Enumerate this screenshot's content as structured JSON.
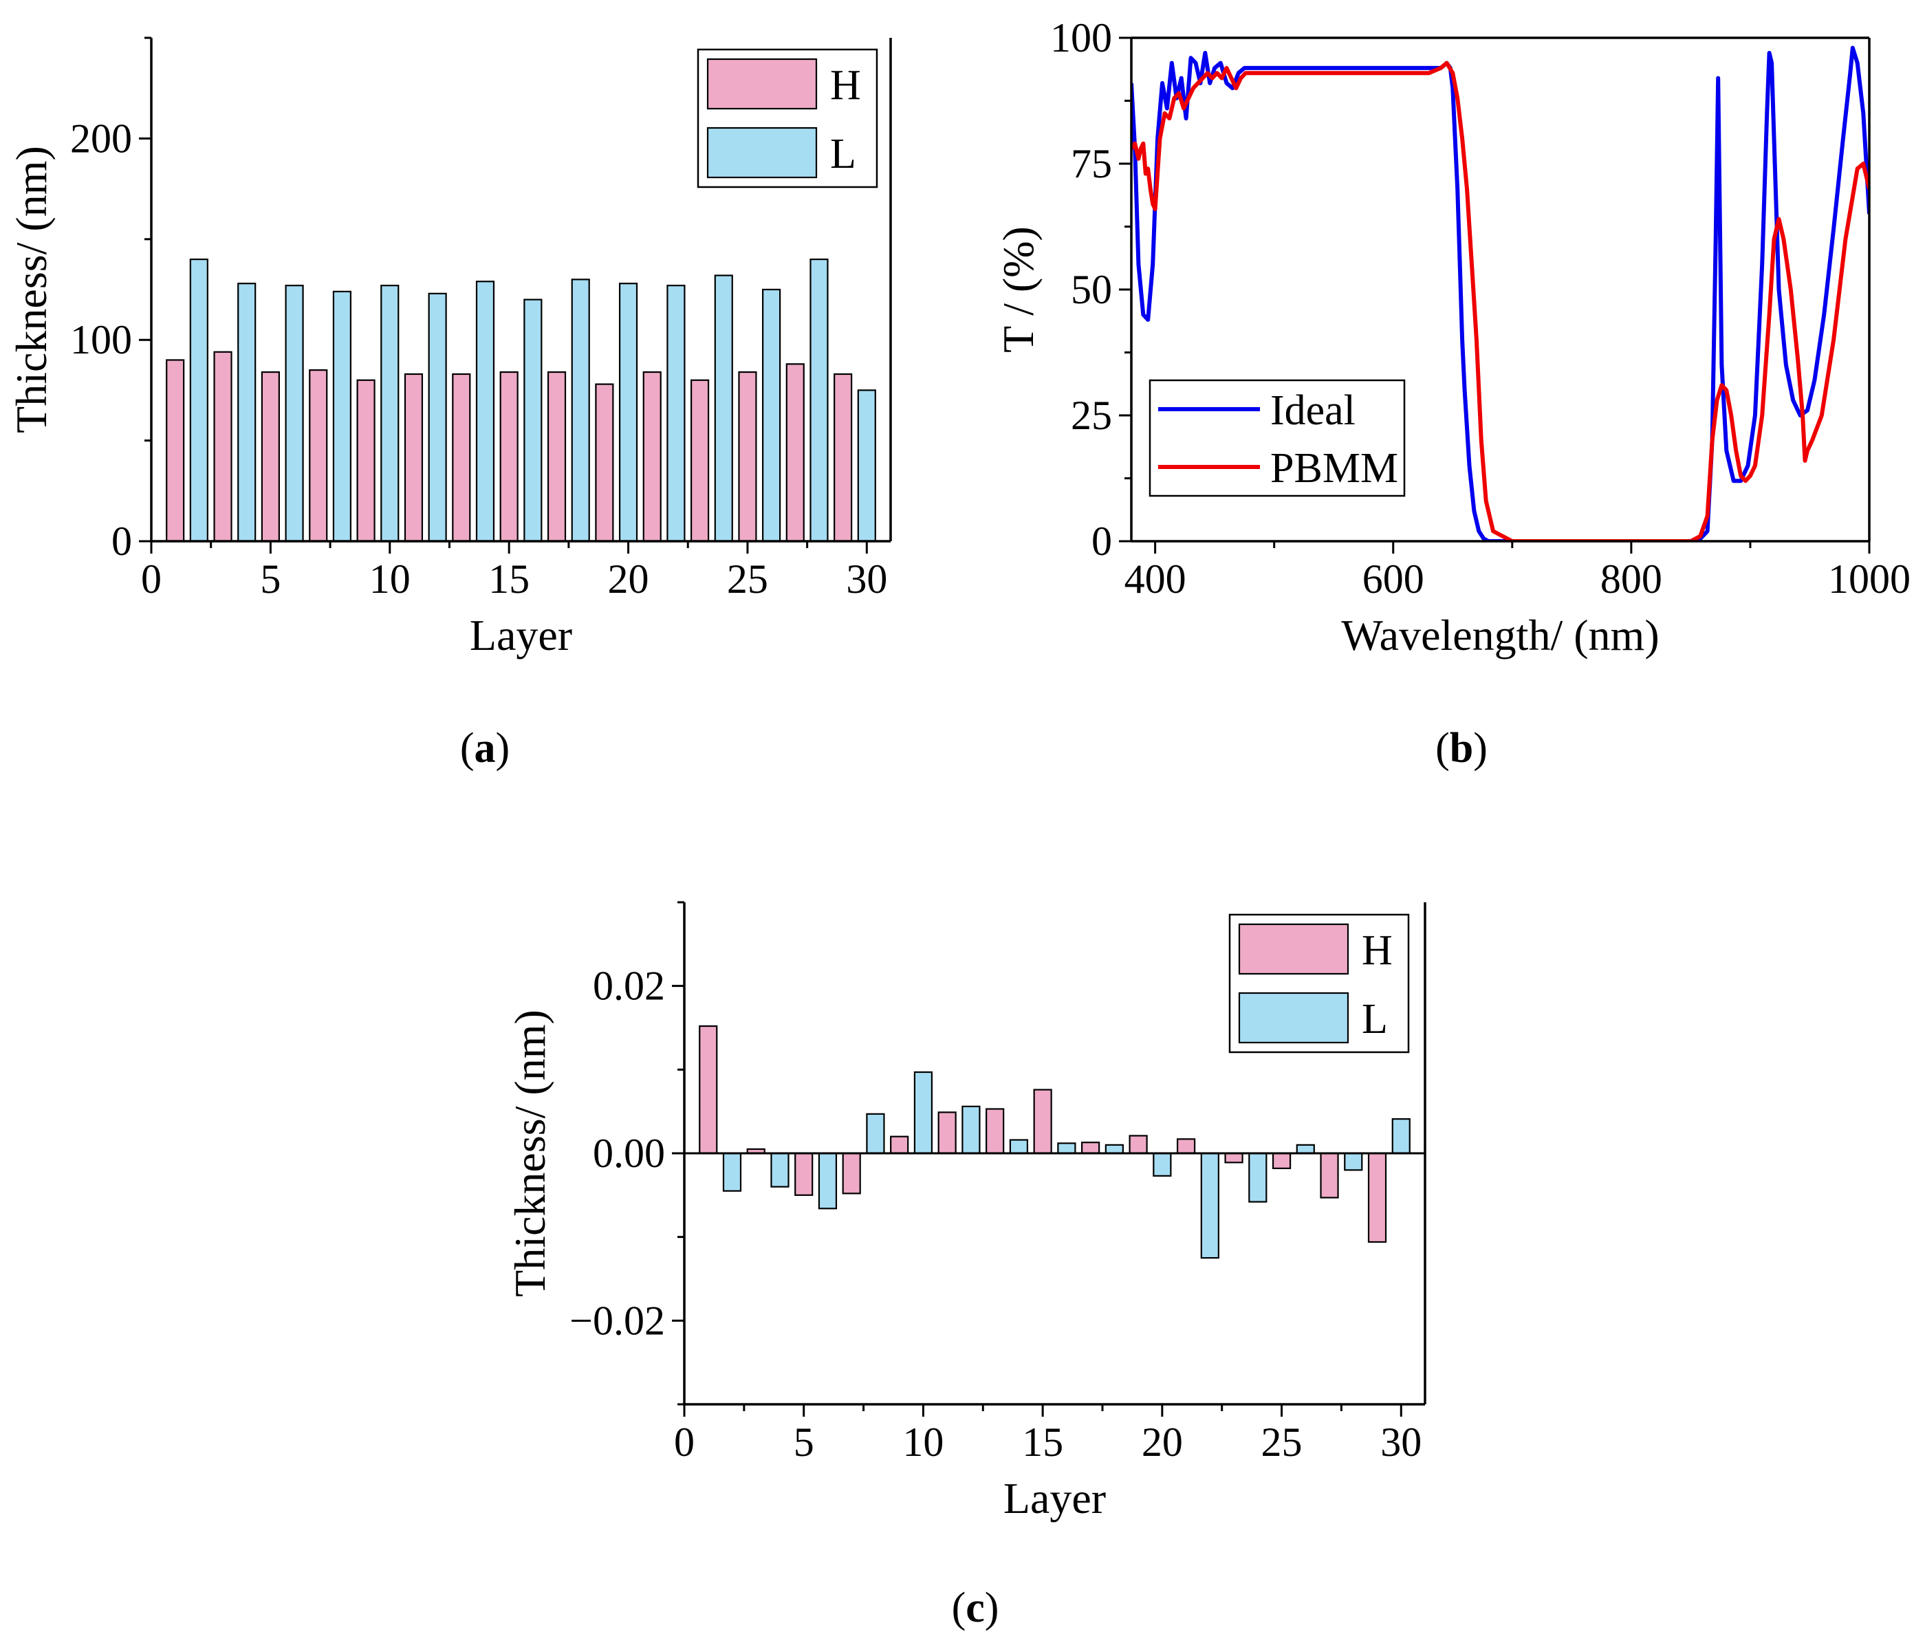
{
  "chart_data": [
    {
      "panel": "(a)",
      "type": "bar",
      "xlabel": "Layer",
      "ylabel": "Thickness/ (nm)",
      "xlim": [
        0,
        31
      ],
      "ylim": [
        0,
        250
      ],
      "xticks": [
        0,
        5,
        10,
        15,
        20,
        25,
        30
      ],
      "yticks": [
        0,
        100,
        200
      ],
      "legend_position": "top-right",
      "series": [
        {
          "name": "H",
          "color": "#eeaac6",
          "x": [
            1,
            3,
            5,
            7,
            9,
            11,
            13,
            15,
            17,
            19,
            21,
            23,
            25,
            27,
            29
          ],
          "values": [
            90,
            94,
            84,
            85,
            80,
            83,
            83,
            84,
            84,
            78,
            84,
            80,
            84,
            88,
            83
          ]
        },
        {
          "name": "L",
          "color": "#a6ddf2",
          "x": [
            2,
            4,
            6,
            8,
            10,
            12,
            14,
            16,
            18,
            20,
            22,
            24,
            26,
            28,
            30
          ],
          "values": [
            140,
            128,
            127,
            124,
            127,
            123,
            129,
            120,
            130,
            128,
            127,
            132,
            125,
            140,
            75
          ]
        }
      ]
    },
    {
      "panel": "(b)",
      "type": "line",
      "xlabel": "Wavelength/ (nm)",
      "ylabel": "T / (%)",
      "xlim": [
        380,
        1000
      ],
      "ylim": [
        0,
        100
      ],
      "xticks": [
        400,
        600,
        800,
        1000
      ],
      "yticks": [
        0,
        25,
        50,
        75,
        100
      ],
      "legend_position": "bottom-left",
      "series": [
        {
          "name": "Ideal",
          "color": "#0000ee",
          "x": [
            380,
            383,
            386,
            390,
            394,
            398,
            402,
            406,
            410,
            414,
            418,
            422,
            426,
            430,
            434,
            438,
            442,
            446,
            450,
            455,
            460,
            465,
            470,
            475,
            480,
            490,
            500,
            520,
            560,
            600,
            620,
            640,
            645,
            648,
            650,
            652,
            654,
            656,
            658,
            660,
            664,
            668,
            672,
            676,
            680,
            690,
            720,
            780,
            820,
            850,
            858,
            864,
            868,
            871,
            873,
            876,
            880,
            886,
            892,
            898,
            904,
            910,
            914,
            916,
            918,
            920,
            924,
            930,
            936,
            942,
            948,
            954,
            962,
            970,
            978,
            984,
            986,
            990,
            995,
            1000
          ],
          "values": [
            91,
            78,
            55,
            45,
            44,
            55,
            80,
            91,
            86,
            95,
            88,
            92,
            84,
            96,
            95,
            91,
            97,
            91,
            94,
            95,
            91,
            90,
            93,
            94,
            94,
            94,
            94,
            94,
            94,
            94,
            94,
            94,
            95,
            94,
            90,
            80,
            70,
            55,
            40,
            30,
            15,
            6,
            2,
            0.5,
            0,
            0,
            0,
            0,
            0,
            0,
            0.5,
            2,
            20,
            60,
            92,
            35,
            18,
            12,
            12,
            15,
            25,
            55,
            85,
            97,
            95,
            80,
            50,
            35,
            28,
            25,
            26,
            32,
            45,
            62,
            80,
            93,
            98,
            95,
            85,
            65
          ]
        },
        {
          "name": "PBMM",
          "color": "#ee0000",
          "x": [
            380,
            383,
            386,
            388,
            390,
            392,
            394,
            396,
            398,
            400,
            404,
            408,
            412,
            416,
            420,
            424,
            428,
            432,
            436,
            440,
            444,
            448,
            452,
            456,
            460,
            464,
            468,
            472,
            476,
            480,
            500,
            540,
            580,
            600,
            620,
            630,
            640,
            645,
            650,
            654,
            658,
            662,
            666,
            670,
            674,
            678,
            684,
            700,
            780,
            820,
            850,
            858,
            864,
            868,
            872,
            876,
            880,
            884,
            888,
            892,
            896,
            900,
            904,
            910,
            916,
            920,
            924,
            928,
            934,
            940,
            944,
            946,
            948,
            952,
            960,
            970,
            980,
            990,
            995,
            1000
          ],
          "values": [
            78,
            79,
            76,
            78,
            79,
            73,
            74,
            70,
            67,
            66,
            80,
            85,
            84,
            88,
            89,
            86,
            88,
            90,
            91,
            92,
            93,
            92,
            93,
            92,
            94,
            92,
            90,
            92,
            93,
            93,
            93,
            93,
            93,
            93,
            93,
            93,
            94,
            95,
            93,
            88,
            80,
            70,
            55,
            40,
            20,
            8,
            2,
            0,
            0,
            0,
            0,
            1,
            5,
            20,
            28,
            31,
            30,
            25,
            18,
            13,
            12,
            13,
            15,
            25,
            45,
            60,
            64,
            60,
            50,
            36,
            25,
            16,
            18,
            20,
            25,
            40,
            60,
            74,
            75,
            70
          ]
        }
      ]
    },
    {
      "panel": "(c)",
      "type": "bar",
      "xlabel": "Layer",
      "ylabel": "Thickness/ (nm)",
      "xlim": [
        0,
        31
      ],
      "ylim": [
        -0.03,
        0.03
      ],
      "xticks": [
        0,
        5,
        10,
        15,
        20,
        25,
        30
      ],
      "yticks": [
        -0.02,
        0.0,
        0.02
      ],
      "ytick_labels": [
        "−0.02",
        "0.00",
        "0.02"
      ],
      "legend_position": "top-right",
      "series": [
        {
          "name": "H",
          "color": "#eeaac6",
          "x": [
            1,
            3,
            5,
            7,
            9,
            11,
            13,
            15,
            17,
            19,
            21,
            23,
            25,
            27,
            29
          ],
          "values": [
            0.0152,
            0.0005,
            -0.005,
            -0.0048,
            0.002,
            0.0049,
            0.0053,
            0.0076,
            0.0013,
            0.0021,
            0.0017,
            -0.0011,
            -0.0018,
            -0.0053,
            -0.0106
          ]
        },
        {
          "name": "L",
          "color": "#a6ddf2",
          "x": [
            2,
            4,
            6,
            8,
            10,
            12,
            14,
            16,
            18,
            20,
            22,
            24,
            26,
            28,
            30
          ],
          "values": [
            -0.0045,
            -0.004,
            -0.0066,
            0.0047,
            0.0097,
            0.0056,
            0.0016,
            0.0012,
            0.001,
            -0.0027,
            -0.0125,
            -0.0058,
            0.001,
            -0.002,
            0.0041
          ]
        }
      ]
    }
  ]
}
